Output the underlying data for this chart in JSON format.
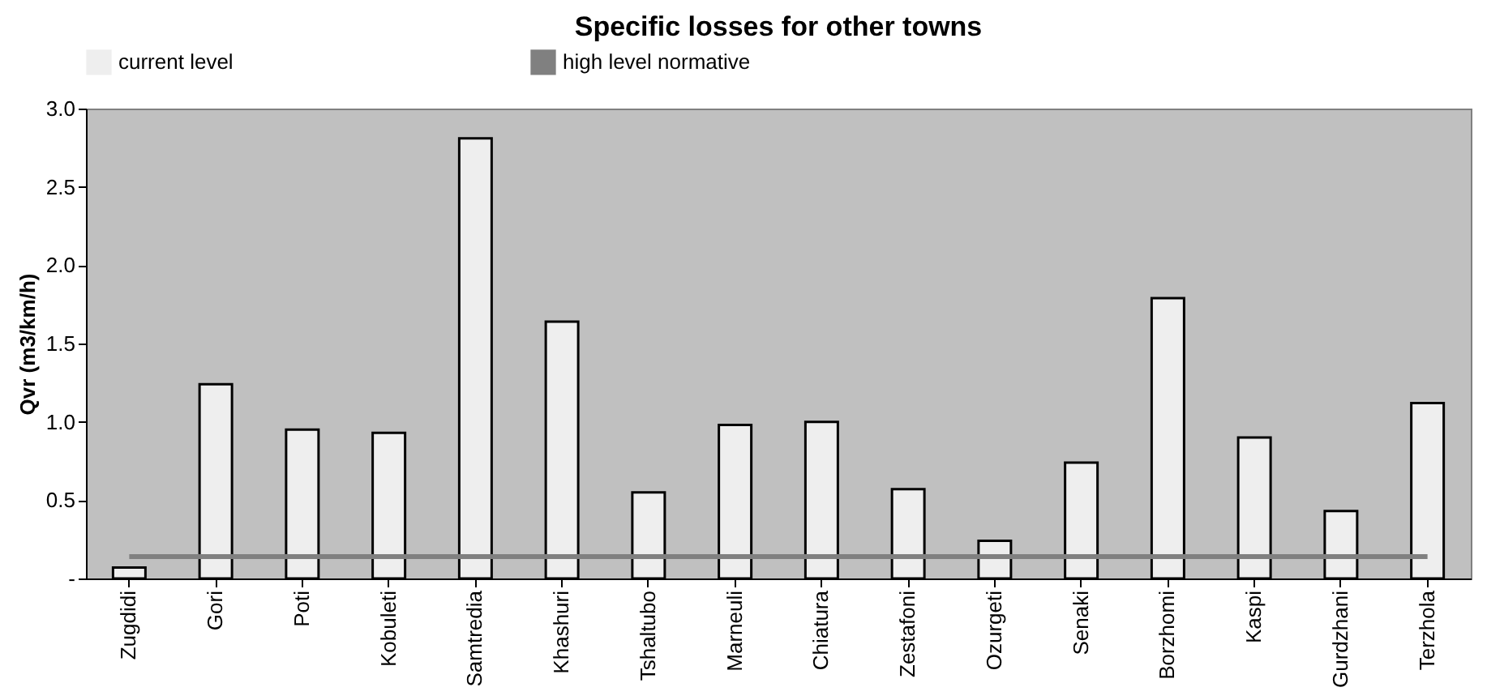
{
  "chart_data": {
    "type": "bar",
    "title": "Specific losses for other towns",
    "ylabel": "Qvr (m3/km/h)",
    "categories": [
      "Zugdidi",
      "Gori",
      "Poti",
      "Kobuleti",
      "Samtredia",
      "Khashuri",
      "Tshaltubo",
      "Marneuli",
      "Chiatura",
      "Zestafoni",
      "Ozurgeti",
      "Senaki",
      "Borzhomi",
      "Kaspi",
      "Gurdzhani",
      "Terzhola"
    ],
    "series": [
      {
        "name": "current level",
        "color": "#eeeeee",
        "values": [
          0.07,
          1.24,
          0.95,
          0.93,
          2.81,
          1.64,
          0.55,
          0.98,
          1.0,
          0.57,
          0.24,
          0.74,
          1.79,
          0.9,
          0.43,
          1.12
        ]
      },
      {
        "name": "high level normative",
        "type": "line",
        "color": "#808080",
        "values": [
          0.14,
          0.14,
          0.14,
          0.14,
          0.14,
          0.14,
          0.14,
          0.14,
          0.14,
          0.14,
          0.14,
          0.14,
          0.14,
          0.14,
          0.14,
          0.14
        ]
      }
    ],
    "ylim": [
      0,
      3.0
    ],
    "yticks": [
      {
        "value": 0,
        "label": "-"
      },
      {
        "value": 0.5,
        "label": "0.5"
      },
      {
        "value": 1.0,
        "label": "1.0"
      },
      {
        "value": 1.5,
        "label": "1.5"
      },
      {
        "value": 2.0,
        "label": "2.0"
      },
      {
        "value": 2.5,
        "label": "2.5"
      },
      {
        "value": 3.0,
        "label": "3.0"
      }
    ],
    "grid": false,
    "legend": "top"
  }
}
